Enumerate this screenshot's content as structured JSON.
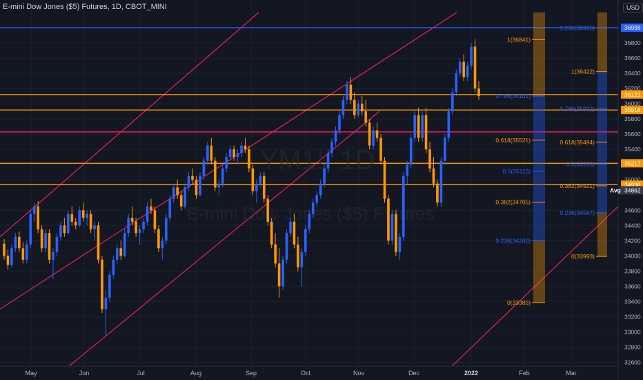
{
  "header": {
    "title": "E-mini Dow Jones ($5) Futures, 1D, CBOT_MINI",
    "currency": "USD",
    "watermark_line1": "YM1!, 1D",
    "watermark_line2": "E-mini Dow Jones ($5) Futures"
  },
  "colors": {
    "background": "#131722",
    "up": "#2962ff",
    "down": "#ff9800",
    "horizontal_blue": "#2962ff",
    "horizontal_orange": "#ff9800",
    "horizontal_pink": "#e91e63",
    "channel_pink": "#e91e63"
  },
  "chart_data": {
    "type": "candlestick",
    "x_ticks": [
      "May",
      "Jun",
      "Jul",
      "Aug",
      "Sep",
      "Oct",
      "Nov",
      "Dec",
      "2022",
      "Feb",
      "Mar"
    ],
    "y_ticks": [
      32600,
      32800,
      33000,
      33200,
      33400,
      33600,
      33800,
      34000,
      34200,
      34400,
      34600,
      35000,
      35200,
      35400,
      35600,
      35800,
      36000,
      36200,
      36400,
      36600,
      36800
    ],
    "ylim": [
      32550,
      37200
    ],
    "price_labels": [
      {
        "text": "36998",
        "value": 36998,
        "color": "#2962ff"
      },
      {
        "text": "36121",
        "value": 36121,
        "color": "#ff9800"
      },
      {
        "text": "35918",
        "value": 35918,
        "color": "#ff9800"
      },
      {
        "text": "35217",
        "value": 35217,
        "color": "#ff9800"
      },
      {
        "text": "34936",
        "value": 34936,
        "color": "#ff9800"
      },
      {
        "text": "34862",
        "value": 34862,
        "color": "#363a45",
        "prefix": "Avg"
      }
    ],
    "horizontal_lines": [
      {
        "value": 36998,
        "color": "#2962ff"
      },
      {
        "value": 36121,
        "color": "#ff9800"
      },
      {
        "value": 35918,
        "color": "#ff9800"
      },
      {
        "value": 35630,
        "color": "#e91e63"
      },
      {
        "value": 35217,
        "color": "#ff9800"
      },
      {
        "value": 34936,
        "color": "#ff9800"
      }
    ],
    "fib_left_labels": [
      {
        "text": "1(36841)",
        "value": 36841,
        "color": "#ff9800"
      },
      {
        "text": "0.786(36101)",
        "value": 36101,
        "color": "#2962ff"
      },
      {
        "text": "0.618(35521)",
        "value": 35521,
        "color": "#ff9800"
      },
      {
        "text": "0.5(35113)",
        "value": 35113,
        "color": "#2962ff"
      },
      {
        "text": "0.382(34705)",
        "value": 34705,
        "color": "#ff9800"
      },
      {
        "text": "0.236(34200)",
        "value": 34200,
        "color": "#2962ff"
      },
      {
        "text": "0(33385)",
        "value": 33385,
        "color": "#ff9800"
      }
    ],
    "fib_right_labels": [
      {
        "text": "1.236(36995)",
        "value": 36995,
        "color": "#2962ff"
      },
      {
        "text": "1(36422)",
        "value": 36422,
        "color": "#ff9800"
      },
      {
        "text": "0.786(35932)",
        "value": 35932,
        "color": "#2962ff"
      },
      {
        "text": "0.618(35494)",
        "value": 35494,
        "color": "#ff9800"
      },
      {
        "text": "0.5(35208)",
        "value": 35208,
        "color": "#2962ff"
      },
      {
        "text": "0.382(34921)",
        "value": 34921,
        "color": "#ff9800"
      },
      {
        "text": "0.236(34567)",
        "value": 34567,
        "color": "#2962ff"
      },
      {
        "text": "0(33993)",
        "value": 33993,
        "color": "#ff9800"
      }
    ],
    "candles": [
      [
        34160,
        34220,
        33950,
        34000
      ],
      [
        34000,
        34080,
        33820,
        33880
      ],
      [
        33880,
        34150,
        33850,
        34100
      ],
      [
        34100,
        34300,
        34050,
        34250
      ],
      [
        34250,
        34320,
        34050,
        34100
      ],
      [
        34100,
        34180,
        33900,
        33950
      ],
      [
        33950,
        34200,
        33900,
        34150
      ],
      [
        34150,
        34600,
        34100,
        34550
      ],
      [
        34550,
        34700,
        34450,
        34650
      ],
      [
        34650,
        34720,
        34300,
        34350
      ],
      [
        34350,
        34400,
        34050,
        34100
      ],
      [
        34100,
        34350,
        34050,
        34300
      ],
      [
        34300,
        34350,
        33900,
        33950
      ],
      [
        33950,
        34100,
        33700,
        34050
      ],
      [
        34050,
        34300,
        34000,
        34250
      ],
      [
        34250,
        34450,
        34200,
        34400
      ],
      [
        34400,
        34500,
        34250,
        34300
      ],
      [
        34300,
        34600,
        34280,
        34550
      ],
      [
        34550,
        34650,
        34400,
        34450
      ],
      [
        34450,
        34500,
        34350,
        34400
      ],
      [
        34400,
        34650,
        34380,
        34600
      ],
      [
        34600,
        34700,
        34450,
        34500
      ],
      [
        34500,
        34600,
        34400,
        34550
      ],
      [
        34550,
        34600,
        34300,
        34350
      ],
      [
        34350,
        34450,
        34200,
        34400
      ],
      [
        34400,
        34450,
        33900,
        33950
      ],
      [
        33950,
        34000,
        33250,
        33300
      ],
      [
        33300,
        33550,
        32950,
        33450
      ],
      [
        33450,
        33800,
        33400,
        33750
      ],
      [
        33750,
        34000,
        33700,
        33950
      ],
      [
        33950,
        34150,
        33900,
        34100
      ],
      [
        34100,
        34200,
        33950,
        34000
      ],
      [
        34000,
        34350,
        33980,
        34300
      ],
      [
        34300,
        34550,
        34250,
        34500
      ],
      [
        34500,
        34650,
        34400,
        34450
      ],
      [
        34450,
        34500,
        34250,
        34300
      ],
      [
        34300,
        34400,
        34150,
        34350
      ],
      [
        34350,
        34500,
        34300,
        34450
      ],
      [
        34450,
        34700,
        34400,
        34650
      ],
      [
        34650,
        34750,
        34550,
        34600
      ],
      [
        34600,
        34650,
        34300,
        34350
      ],
      [
        34350,
        34400,
        34050,
        34100
      ],
      [
        34100,
        34250,
        33950,
        34200
      ],
      [
        34200,
        34550,
        34150,
        34500
      ],
      [
        34500,
        34800,
        34450,
        34750
      ],
      [
        34750,
        34950,
        34700,
        34900
      ],
      [
        34900,
        35000,
        34750,
        34800
      ],
      [
        34800,
        34850,
        34600,
        34650
      ],
      [
        34650,
        34950,
        34620,
        34900
      ],
      [
        34900,
        35100,
        34850,
        35050
      ],
      [
        35050,
        35150,
        34950,
        35000
      ],
      [
        35000,
        35050,
        34750,
        34800
      ],
      [
        34800,
        35100,
        34780,
        35050
      ],
      [
        35050,
        35300,
        35000,
        35250
      ],
      [
        35250,
        35500,
        35200,
        35450
      ],
      [
        35450,
        35550,
        35200,
        35250
      ],
      [
        35250,
        35300,
        34850,
        34900
      ],
      [
        34900,
        35000,
        34800,
        34950
      ],
      [
        34950,
        35200,
        34900,
        35150
      ],
      [
        35150,
        35350,
        35100,
        35300
      ],
      [
        35300,
        35450,
        35250,
        35400
      ],
      [
        35400,
        35450,
        35250,
        35300
      ],
      [
        35300,
        35400,
        35200,
        35350
      ],
      [
        35350,
        35500,
        35300,
        35450
      ],
      [
        35450,
        35550,
        35350,
        35400
      ],
      [
        35400,
        35450,
        35100,
        35150
      ],
      [
        35150,
        35200,
        34800,
        34850
      ],
      [
        34850,
        35000,
        34700,
        34950
      ],
      [
        34950,
        35100,
        34900,
        35050
      ],
      [
        35050,
        35100,
        34700,
        34750
      ],
      [
        34750,
        34800,
        34400,
        34450
      ],
      [
        34450,
        34500,
        34100,
        34150
      ],
      [
        34150,
        34300,
        33850,
        33900
      ],
      [
        33900,
        34100,
        33450,
        33600
      ],
      [
        33600,
        34000,
        33550,
        33950
      ],
      [
        33950,
        34350,
        33900,
        34300
      ],
      [
        34300,
        34500,
        34250,
        34450
      ],
      [
        34450,
        34550,
        34100,
        34150
      ],
      [
        34150,
        34250,
        33800,
        33850
      ],
      [
        33850,
        34100,
        33600,
        34050
      ],
      [
        34050,
        34400,
        34000,
        34350
      ],
      [
        34350,
        34600,
        34300,
        34550
      ],
      [
        34550,
        34750,
        34500,
        34700
      ],
      [
        34700,
        34850,
        34650,
        34800
      ],
      [
        34800,
        35000,
        34750,
        34950
      ],
      [
        34950,
        35200,
        34900,
        35150
      ],
      [
        35150,
        35400,
        35100,
        35350
      ],
      [
        35350,
        35550,
        35300,
        35500
      ],
      [
        35500,
        35700,
        35450,
        35650
      ],
      [
        35650,
        35900,
        35600,
        35850
      ],
      [
        35850,
        36100,
        35800,
        36050
      ],
      [
        36050,
        36300,
        36000,
        36250
      ],
      [
        36250,
        36350,
        36000,
        36050
      ],
      [
        36050,
        36150,
        35800,
        35850
      ],
      [
        35850,
        36050,
        35820,
        36000
      ],
      [
        36000,
        36100,
        35850,
        35900
      ],
      [
        35900,
        36050,
        35700,
        35750
      ],
      [
        35750,
        35800,
        35400,
        35450
      ],
      [
        35450,
        35700,
        35400,
        35650
      ],
      [
        35650,
        35750,
        35500,
        35550
      ],
      [
        35550,
        35600,
        35200,
        35250
      ],
      [
        35250,
        35300,
        34700,
        34750
      ],
      [
        34750,
        34800,
        34150,
        34200
      ],
      [
        34200,
        34600,
        34150,
        34550
      ],
      [
        34550,
        34600,
        34000,
        34050
      ],
      [
        34050,
        34300,
        33950,
        34250
      ],
      [
        34250,
        35100,
        34200,
        35050
      ],
      [
        35050,
        35250,
        34950,
        35200
      ],
      [
        35200,
        35600,
        35150,
        35550
      ],
      [
        35550,
        35900,
        35500,
        35850
      ],
      [
        35850,
        35950,
        35500,
        35550
      ],
      [
        35550,
        35900,
        35500,
        35850
      ],
      [
        35850,
        35950,
        35350,
        35400
      ],
      [
        35400,
        35500,
        35100,
        35150
      ],
      [
        35150,
        35300,
        34900,
        34950
      ],
      [
        34950,
        35000,
        34650,
        34700
      ],
      [
        34700,
        35300,
        34650,
        35250
      ],
      [
        35250,
        35600,
        35200,
        35550
      ],
      [
        35550,
        35950,
        35500,
        35900
      ],
      [
        35900,
        36200,
        35850,
        36150
      ],
      [
        36150,
        36450,
        36100,
        36400
      ],
      [
        36400,
        36600,
        36350,
        36550
      ],
      [
        36550,
        36650,
        36300,
        36350
      ],
      [
        36350,
        36550,
        36300,
        36500
      ],
      [
        36500,
        36800,
        36450,
        36750
      ],
      [
        36750,
        36850,
        36150,
        36200
      ],
      [
        36200,
        36300,
        36050,
        36100
      ]
    ]
  }
}
